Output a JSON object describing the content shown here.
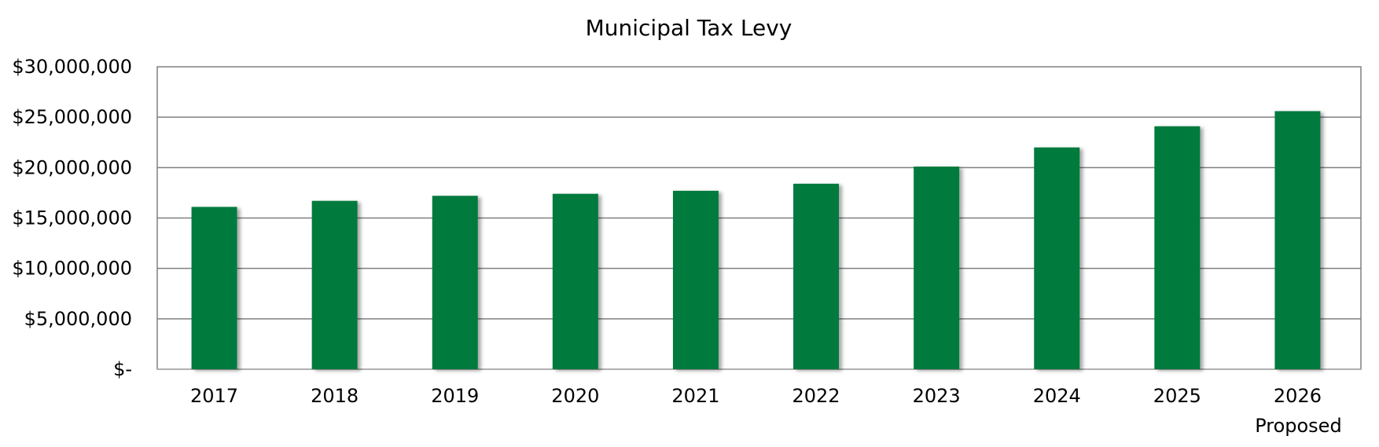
{
  "chart_data": {
    "type": "bar",
    "title": "Municipal Tax Levy",
    "xlabel": "",
    "ylabel": "",
    "categories": [
      "2017",
      "2018",
      "2019",
      "2020",
      "2021",
      "2022",
      "2023",
      "2024",
      "2025",
      "2026"
    ],
    "category_sublabels": [
      "",
      "",
      "",
      "",
      "",
      "",
      "",
      "",
      "",
      "Proposed"
    ],
    "values": [
      16100000,
      16700000,
      17200000,
      17400000,
      17700000,
      18400000,
      20100000,
      22000000,
      24100000,
      25600000
    ],
    "ylim": [
      0,
      30000000
    ],
    "yticks": [
      0,
      5000000,
      10000000,
      15000000,
      20000000,
      25000000,
      30000000
    ],
    "ytick_labels": [
      "$-",
      "$5,000,000",
      "$10,000,000",
      "$15,000,000",
      "$20,000,000",
      "$25,000,000",
      "$30,000,000"
    ],
    "grid": true,
    "bar_color": "#007A3D",
    "grid_color": "#808080",
    "legend": "none"
  }
}
